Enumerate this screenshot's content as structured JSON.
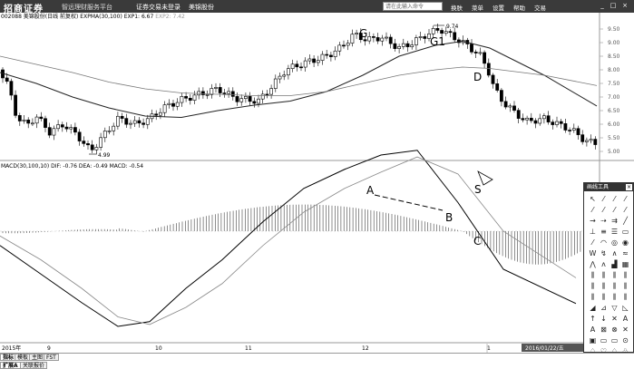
{
  "topbar": {
    "logo": "招商证券",
    "tagline": "智远理财服务平台",
    "links": [
      "证券交易未登录",
      "美锦股份"
    ],
    "search_placeholder": "请在此输入命令",
    "menu": [
      "换肤",
      "菜单",
      "设置",
      "帮助",
      "交易"
    ],
    "window_controls": [
      "_",
      "□",
      "×"
    ]
  },
  "kline": {
    "header": "002088 美锦股份(日线 前复权) EXPMA(30,100) EXP1: 6.67",
    "exp2": "EXP2: 7.42",
    "y_ticks": [
      "9.50",
      "9.00",
      "8.50",
      "8.00",
      "7.50",
      "7.00",
      "6.50",
      "6.00",
      "5.50",
      "5.00"
    ],
    "high_label": "9.74",
    "low_label": "4.99",
    "annotations": [
      "G",
      "G1",
      "D"
    ]
  },
  "macd": {
    "header": "MACD(30,100,10) DIF: -0.76 DEA: -0.49 MACD: -0.54",
    "annotations": [
      "A",
      "B",
      "C",
      "S"
    ]
  },
  "axis": {
    "labels": [
      "2015年",
      "9",
      "10",
      "11",
      "12",
      "1"
    ],
    "cursor_date": "2016/01/22/五"
  },
  "tools": {
    "title": "画线工具"
  },
  "tabs": {
    "row1": [
      "指标",
      "模板",
      "主图",
      "FST"
    ],
    "row2": [
      "扩展A",
      "关联报价"
    ]
  },
  "colors": {
    "background": "#ffffff",
    "candle": "#000000",
    "topbar": "#3a3a3a"
  },
  "chart_data": {
    "type": "line",
    "title": "",
    "series": [
      {
        "name": "EXP1",
        "values": [
          7.9,
          7.5,
          7.0,
          6.6,
          6.3,
          6.25,
          6.5,
          6.7,
          6.85,
          7.2,
          7.8,
          8.5,
          8.9,
          9.05,
          8.8,
          7.8,
          6.67
        ]
      },
      {
        "name": "EXP2",
        "values": [
          8.5,
          8.2,
          7.9,
          7.55,
          7.3,
          7.15,
          7.1,
          7.05,
          7.05,
          7.2,
          7.5,
          7.8,
          8.0,
          8.1,
          8.05,
          7.8,
          7.42
        ]
      },
      {
        "name": "DIF",
        "values": [
          -0.15,
          -0.45,
          -0.75,
          -1.0,
          -0.95,
          -0.6,
          -0.3,
          0.1,
          0.45,
          0.65,
          0.8,
          0.85,
          0.3,
          -0.4,
          -0.76
        ]
      },
      {
        "name": "DEA",
        "values": [
          -0.05,
          -0.3,
          -0.6,
          -0.9,
          -0.98,
          -0.8,
          -0.55,
          -0.15,
          0.2,
          0.45,
          0.62,
          0.78,
          0.6,
          0.0,
          -0.49
        ]
      }
    ]
  }
}
